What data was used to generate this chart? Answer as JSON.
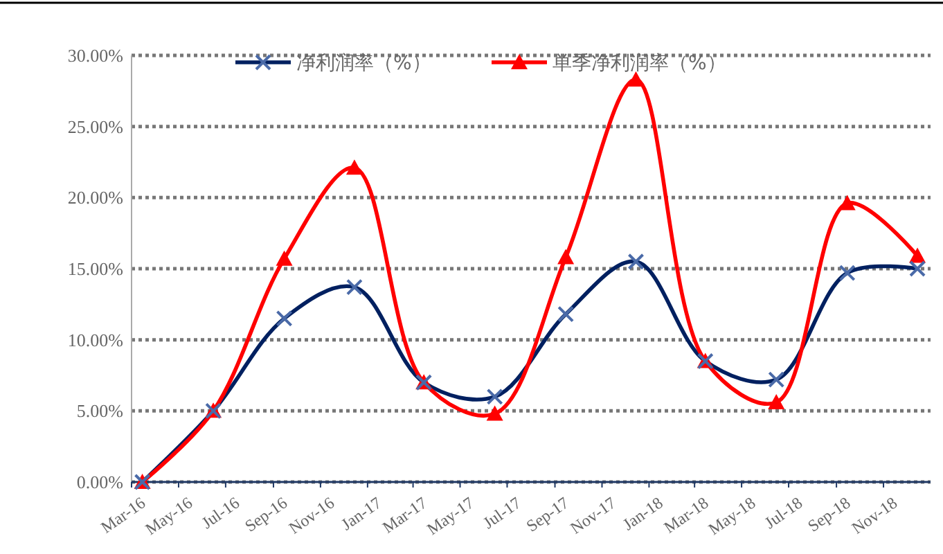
{
  "chart_data": {
    "type": "line",
    "x": [
      "2016-03-15",
      "2016-06-15",
      "2016-09-15",
      "2016-12-15",
      "2017-03-15",
      "2017-06-15",
      "2017-09-15",
      "2017-12-15",
      "2018-03-15",
      "2018-06-15",
      "2018-09-15",
      "2018-12-15"
    ],
    "series": [
      {
        "name": "净利润率（%）",
        "color": "#002060",
        "marker": "cross",
        "values": [
          0,
          5,
          11.5,
          13.7,
          7,
          6,
          11.8,
          15.5,
          8.5,
          7.2,
          14.7,
          15
        ]
      },
      {
        "name": "单季净利润率（%）",
        "color": "#ff0000",
        "marker": "triangle",
        "values": [
          0,
          5,
          15.7,
          22.1,
          7,
          4.8,
          15.8,
          28.3,
          8.5,
          5.6,
          19.6,
          15.9
        ]
      }
    ],
    "xlim": [
      "2016-03-01",
      "2019-01-01"
    ],
    "xticks": [
      {
        "value": "2016-03-01",
        "label": "Mar-16"
      },
      {
        "value": "2016-05-01",
        "label": "May-16"
      },
      {
        "value": "2016-07-01",
        "label": "Jul-16"
      },
      {
        "value": "2016-09-01",
        "label": "Sep-16"
      },
      {
        "value": "2016-11-01",
        "label": "Nov-16"
      },
      {
        "value": "2017-01-01",
        "label": "Jan-17"
      },
      {
        "value": "2017-03-01",
        "label": "Mar-17"
      },
      {
        "value": "2017-05-01",
        "label": "May-17"
      },
      {
        "value": "2017-07-01",
        "label": "Jul-17"
      },
      {
        "value": "2017-09-01",
        "label": "Sep-17"
      },
      {
        "value": "2017-11-01",
        "label": "Nov-17"
      },
      {
        "value": "2018-01-01",
        "label": "Jan-18"
      },
      {
        "value": "2018-03-01",
        "label": "Mar-18"
      },
      {
        "value": "2018-05-01",
        "label": "May-18"
      },
      {
        "value": "2018-07-01",
        "label": "Jul-18"
      },
      {
        "value": "2018-09-01",
        "label": "Sep-18"
      },
      {
        "value": "2018-11-01",
        "label": "Nov-18"
      }
    ],
    "ylim": [
      0,
      30
    ],
    "yticks": [
      {
        "value": 0,
        "label": "0.00%"
      },
      {
        "value": 5,
        "label": "5.00%"
      },
      {
        "value": 10,
        "label": "10.00%"
      },
      {
        "value": 15,
        "label": "15.00%"
      },
      {
        "value": 20,
        "label": "20.00%"
      },
      {
        "value": 25,
        "label": "25.00%"
      },
      {
        "value": 30,
        "label": "30.00%"
      }
    ],
    "grid": "y",
    "legend": "top",
    "line_style": "solid"
  }
}
